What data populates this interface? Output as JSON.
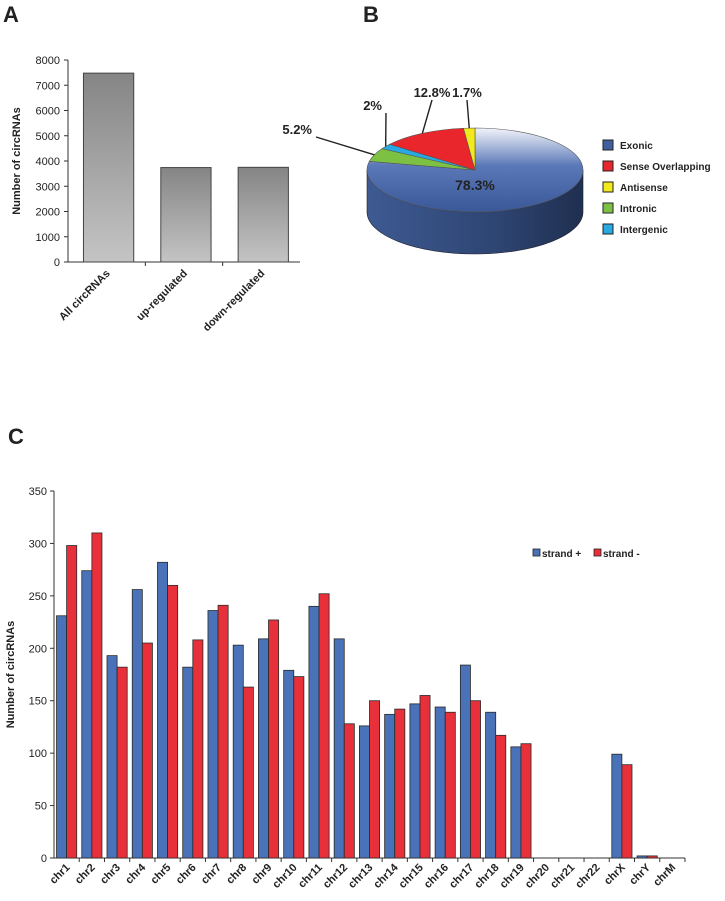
{
  "chart_data": [
    {
      "panel": "A",
      "type": "bar",
      "ylabel": "Number of circRNAs",
      "ylim": [
        0,
        8000
      ],
      "yticks": [
        0,
        1000,
        2000,
        3000,
        4000,
        5000,
        6000,
        7000,
        8000
      ],
      "categories": [
        "All circRNAs",
        "up-regulated",
        "down-regulated"
      ],
      "values": [
        7480,
        3740,
        3750
      ],
      "bar_color": "gray gradient"
    },
    {
      "panel": "B",
      "type": "pie",
      "style": "3d",
      "legend_placement": "right",
      "slices": [
        {
          "name": "Exonic",
          "value": 78.3,
          "label": "78.3%",
          "color": "#3f5f9e"
        },
        {
          "name": "Sense Overlapping",
          "value": 12.8,
          "label": "12.8%",
          "color": "#e8262b"
        },
        {
          "name": "Antisense",
          "value": 1.7,
          "label": "1.7%",
          "color": "#f2ea1c"
        },
        {
          "name": "Intronic",
          "value": 5.2,
          "label": "5.2%",
          "color": "#7dc142"
        },
        {
          "name": "Intergenic",
          "value": 2,
          "label": "2%",
          "color": "#29a9e1"
        }
      ]
    },
    {
      "panel": "C",
      "type": "bar",
      "ylabel": "Number of circRNAs",
      "ylim": [
        0,
        350
      ],
      "yticks": [
        0,
        50,
        100,
        150,
        200,
        250,
        300,
        350
      ],
      "legend_placement": "top-right",
      "categories": [
        "chr1",
        "chr2",
        "chr3",
        "chr4",
        "chr5",
        "chr6",
        "chr7",
        "chr8",
        "chr9",
        "chr10",
        "chr11",
        "chr12",
        "chr13",
        "chr14",
        "chr15",
        "chr16",
        "chr17",
        "chr18",
        "chr19",
        "chr20",
        "chr21",
        "chr22",
        "chrX",
        "chrY",
        "chrM"
      ],
      "series": [
        {
          "name": "strand +",
          "color": "#4a72b8",
          "values": [
            231,
            274,
            193,
            256,
            282,
            182,
            236,
            203,
            209,
            179,
            240,
            209,
            126,
            137,
            147,
            144,
            184,
            139,
            106,
            0,
            0,
            0,
            99,
            2,
            0
          ]
        },
        {
          "name": "strand -",
          "color": "#e8303a",
          "values": [
            298,
            310,
            182,
            205,
            260,
            208,
            241,
            163,
            227,
            173,
            252,
            128,
            150,
            142,
            155,
            139,
            150,
            117,
            109,
            0,
            0,
            0,
            89,
            2,
            0
          ]
        }
      ]
    }
  ]
}
